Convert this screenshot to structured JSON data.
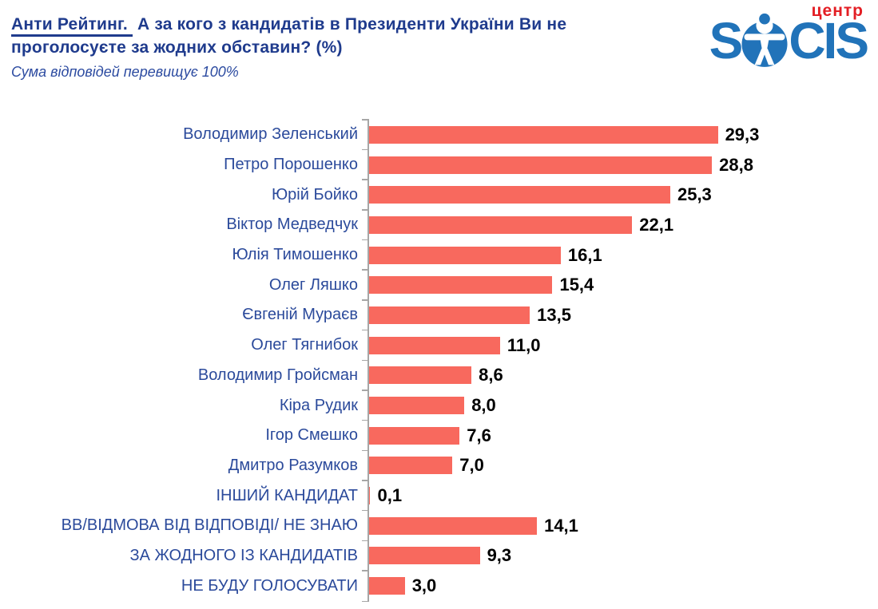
{
  "header": {
    "title_emphasis": "Анти Рейтинг.",
    "title_rest": "А за кого з кандидатів в Президенти України Ви не проголосуєте за жодних обставин? (%)",
    "subtitle": "Сума відповідей перевищує 100%"
  },
  "logo": {
    "word_start": "S",
    "word_end": "CIS",
    "tagline": "центр",
    "brand_blue": "#2173b9",
    "brand_red": "#e31e24"
  },
  "chart_data": {
    "type": "bar",
    "orientation": "horizontal",
    "title": "Анти Рейтинг. А за кого з кандидатів в Президенти України Ви не проголосуєте за жодних обставин? (%)",
    "subtitle": "Сума відповідей перевищує 100%",
    "categories": [
      "Володимир Зеленський",
      "Петро Порошенко",
      "Юрій Бойко",
      "Віктор Медведчук",
      "Юлія Тимошенко",
      "Олег Ляшко",
      "Євгеній Мураєв",
      "Олег Тягнибок",
      "Володимир Гройсман",
      "Кіра Рудик",
      "Ігор Смешко",
      "Дмитро Разумков",
      "ІНШИЙ КАНДИДАТ",
      "ВВ/ВІДМОВА ВІД ВІДПОВІДІ/ НЕ ЗНАЮ",
      "ЗА ЖОДНОГО ІЗ КАНДИДАТІВ",
      "НЕ БУДУ ГОЛОСУВАТИ"
    ],
    "values": [
      29.3,
      28.8,
      25.3,
      22.1,
      16.1,
      15.4,
      13.5,
      11.0,
      8.6,
      8.0,
      7.6,
      7.0,
      0.1,
      14.1,
      9.3,
      3.0
    ],
    "value_labels": [
      "29,3",
      "28,8",
      "25,3",
      "22,1",
      "16,1",
      "15,4",
      "13,5",
      "11,0",
      "8,6",
      "8,0",
      "7,6",
      "7,0",
      "0,1",
      "14,1",
      "9,3",
      "3,0"
    ],
    "xlim": [
      0,
      30
    ],
    "grid": false,
    "legend": false,
    "bar_color": "#f8695e",
    "category_label_color": "#2b4a9b",
    "value_label_color": "#000000",
    "axis_color": "#a6a6a6"
  }
}
